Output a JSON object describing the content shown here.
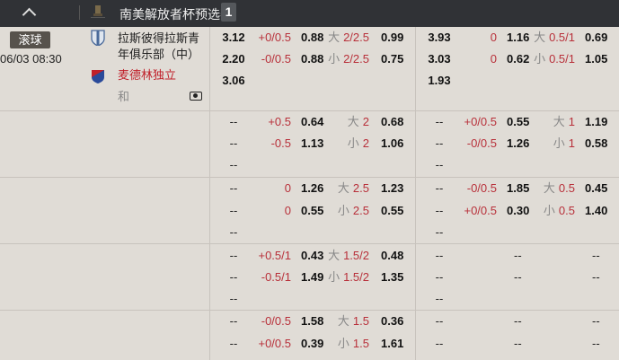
{
  "header": {
    "collapse_icon": "chevron-up-icon",
    "league_icon": "trophy-icon",
    "league": "南美解放者杯预选赛",
    "count": "1"
  },
  "match": {
    "status": "滚球",
    "datetime": "06/03 08:30",
    "home": "拉斯彼得拉斯青年俱乐部（中）",
    "away": "麦德林独立",
    "draw": "和",
    "video_icon": "camera-icon"
  },
  "rows": [
    [
      [
        "3.12",
        "+0/0.5",
        "0.88",
        "大",
        "2/2.5",
        "0.99",
        "3.93",
        "0",
        "1.16",
        "大",
        "0.5/1",
        "0.69"
      ],
      [
        "2.20",
        "-0/0.5",
        "0.88",
        "小",
        "2/2.5",
        "0.75",
        "3.03",
        "0",
        "0.62",
        "小",
        "0.5/1",
        "1.05"
      ],
      [
        "3.06",
        "",
        "",
        "",
        "",
        "",
        "1.93",
        "",
        "",
        "",
        "",
        ""
      ]
    ],
    [
      [
        "--",
        "+0.5",
        "0.64",
        "大",
        "2",
        "0.68",
        "--",
        "+0/0.5",
        "0.55",
        "大",
        "1",
        "1.19"
      ],
      [
        "--",
        "-0.5",
        "1.13",
        "小",
        "2",
        "1.06",
        "--",
        "-0/0.5",
        "1.26",
        "小",
        "1",
        "0.58"
      ],
      [
        "--",
        "",
        "",
        "",
        "",
        "",
        "--",
        "",
        "",
        "",
        "",
        ""
      ]
    ],
    [
      [
        "--",
        "0",
        "1.26",
        "大",
        "2.5",
        "1.23",
        "--",
        "-0/0.5",
        "1.85",
        "大",
        "0.5",
        "0.45"
      ],
      [
        "--",
        "0",
        "0.55",
        "小",
        "2.5",
        "0.55",
        "--",
        "+0/0.5",
        "0.30",
        "小",
        "0.5",
        "1.40"
      ],
      [
        "--",
        "",
        "",
        "",
        "",
        "",
        "--",
        "",
        "",
        "",
        "",
        ""
      ]
    ],
    [
      [
        "--",
        "+0.5/1",
        "0.43",
        "大",
        "1.5/2",
        "0.48",
        "--",
        "",
        "--",
        "",
        "",
        "--"
      ],
      [
        "--",
        "-0.5/1",
        "1.49",
        "小",
        "1.5/2",
        "1.35",
        "--",
        "",
        "--",
        "",
        "",
        "--"
      ],
      [
        "--",
        "",
        "",
        "",
        "",
        "",
        "--",
        "",
        "",
        "",
        "",
        ""
      ]
    ],
    [
      [
        "--",
        "-0/0.5",
        "1.58",
        "大",
        "1.5",
        "0.36",
        "--",
        "",
        "--",
        "",
        "",
        "--"
      ],
      [
        "--",
        "+0/0.5",
        "0.39",
        "小",
        "1.5",
        "1.61",
        "--",
        "",
        "--",
        "",
        "",
        "--"
      ]
    ]
  ],
  "colors": {
    "header_bg": "#303236",
    "body_bg": "#e0dcd6",
    "handicap": "#b8303a"
  }
}
